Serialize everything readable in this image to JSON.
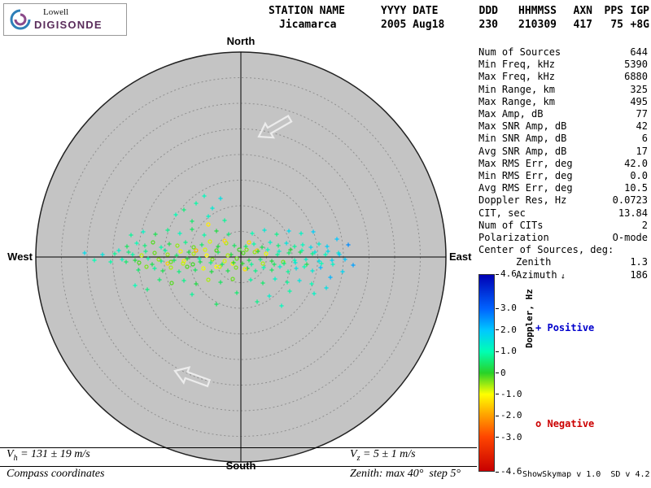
{
  "logo": {
    "top": "Lowell",
    "bottom": "DIGISONDE",
    "accent": "#5a2d5b"
  },
  "header": {
    "columns": [
      {
        "label": "STATION NAME",
        "value": "Jicamarca"
      },
      {
        "label": "YYYY DATE",
        "value": "2005 Aug18"
      },
      {
        "label": "DDD",
        "value": "230"
      },
      {
        "label": "HHMMSS",
        "value": "210309"
      },
      {
        "label": "AXN",
        "value": "417"
      },
      {
        "label": "PPS",
        "value": "75"
      },
      {
        "label": "IGP",
        "value": "+8G"
      }
    ]
  },
  "compass": {
    "north": "North",
    "south": "South",
    "east": "East",
    "west": "West"
  },
  "stats": {
    "rows": [
      {
        "label": "Num of Sources",
        "value": "644"
      },
      {
        "label": "Min Freq, kHz",
        "value": "5390"
      },
      {
        "label": "Max Freq, kHz",
        "value": "6880"
      },
      {
        "label": "Min Range, km",
        "value": "325"
      },
      {
        "label": "Max Range, km",
        "value": "495"
      },
      {
        "label": "Max Amp, dB",
        "value": "77"
      },
      {
        "label": "Max SNR Amp, dB",
        "value": "42"
      },
      {
        "label": "Min SNR Amp, dB",
        "value": "6"
      },
      {
        "label": "Avg SNR Amp, dB",
        "value": "17"
      },
      {
        "label": "Max RMS Err, deg",
        "value": "42.0"
      },
      {
        "label": "Min RMS Err, deg",
        "value": "0.0"
      },
      {
        "label": "Avg RMS Err, deg",
        "value": "10.5"
      },
      {
        "label": "Doppler Res, Hz",
        "value": "0.0723"
      },
      {
        "label": "CIT, sec",
        "value": "13.84"
      },
      {
        "label": "Num of CITs",
        "value": "2"
      },
      {
        "label": "Polarization",
        "value": "O-mode"
      }
    ],
    "center_header": "Center of Sources, deg:",
    "center_rows": [
      {
        "label": "Zenith",
        "value": "1.3"
      },
      {
        "label": "Azimuth",
        "value": "186",
        "icon": "azimuth-direction"
      }
    ]
  },
  "colorbar": {
    "label": "Doppler, Hz",
    "min": -4.6,
    "max": 4.6,
    "ticks": [
      {
        "v": 4.6,
        "label": "4.6"
      },
      {
        "v": 3.0,
        "label": "3.0"
      },
      {
        "v": 2.0,
        "label": "2.0"
      },
      {
        "v": 1.0,
        "label": "1.0"
      },
      {
        "v": 0,
        "label": "0"
      },
      {
        "v": -1.0,
        "label": "-1.0"
      },
      {
        "v": -2.0,
        "label": "-2.0"
      },
      {
        "v": -3.0,
        "label": "-3.0"
      },
      {
        "v": -4.6,
        "label": "-4.6"
      }
    ],
    "stops": [
      {
        "v": 4.6,
        "c": "#0000b4"
      },
      {
        "v": 3.0,
        "c": "#0064ff"
      },
      {
        "v": 2.0,
        "c": "#00c8ff"
      },
      {
        "v": 1.0,
        "c": "#00ffb4"
      },
      {
        "v": 0,
        "c": "#28d228"
      },
      {
        "v": -1.0,
        "c": "#ffff00"
      },
      {
        "v": -2.0,
        "c": "#ffa000"
      },
      {
        "v": -3.0,
        "c": "#ff4600"
      },
      {
        "v": -4.6,
        "c": "#c80000"
      }
    ]
  },
  "legend": {
    "positive": "Positive",
    "positive_marker": "+",
    "positive_color": "#0000cc",
    "negative": "Negative",
    "negative_marker": "o",
    "negative_color": "#cc0000"
  },
  "footer": {
    "vh_sym": "V",
    "vh_sub": "h",
    "vh_rest": " = 131 ± 19 m/s",
    "vz_sym": "V",
    "vz_sub": "z",
    "vz_rest": " = 5 ± 1 m/s",
    "coords": "Compass coordinates",
    "zenith_note": "Zenith: max 40°  step 5°",
    "version": "ShowSkymap v 1.0  SD v 4.2"
  },
  "chart_data": {
    "type": "scatter",
    "title": "Digisonde skymap of echo sources",
    "zenith_max_deg": 40,
    "zenith_step_deg": 5,
    "plot_radius_px": 252,
    "points_units": "pixel offsets from plot center (+x=east, +y=south); value = Doppler, Hz",
    "points": [
      [
        -5,
        2,
        -0.3
      ],
      [
        -12,
        -3,
        0.2
      ],
      [
        -20,
        5,
        -0.8
      ],
      [
        -28,
        -6,
        0.5
      ],
      [
        -35,
        3,
        -0.4
      ],
      [
        -42,
        -2,
        -1.0
      ],
      [
        -50,
        6,
        0.3
      ],
      [
        -58,
        -4,
        -0.6
      ],
      [
        -66,
        2,
        0.1
      ],
      [
        -74,
        -7,
        -0.9
      ],
      [
        -82,
        4,
        0.4
      ],
      [
        -90,
        -3,
        -0.5
      ],
      [
        -98,
        5,
        0.7
      ],
      [
        -106,
        -5,
        -0.3
      ],
      [
        -114,
        2,
        0.9
      ],
      [
        -122,
        -2,
        -0.7
      ],
      [
        -130,
        4,
        0.2
      ],
      [
        -138,
        -6,
        0.6
      ],
      [
        -146,
        3,
        1.1
      ],
      [
        -155,
        -4,
        0.8
      ],
      [
        3,
        -5,
        -0.2
      ],
      [
        10,
        4,
        0.3
      ],
      [
        17,
        -6,
        -0.5
      ],
      [
        24,
        3,
        0.6
      ],
      [
        31,
        -4,
        -0.9
      ],
      [
        38,
        5,
        0.2
      ],
      [
        45,
        -3,
        0.8
      ],
      [
        52,
        6,
        -0.4
      ],
      [
        59,
        -5,
        0.5
      ],
      [
        66,
        4,
        1.0
      ],
      [
        73,
        -6,
        0.3
      ],
      [
        80,
        3,
        1.3
      ],
      [
        88,
        -4,
        0.7
      ],
      [
        96,
        5,
        1.6
      ],
      [
        104,
        -3,
        1.1
      ],
      [
        112,
        4,
        1.8
      ],
      [
        120,
        -5,
        1.4
      ],
      [
        128,
        3,
        2.0
      ],
      [
        -8,
        -14,
        0.4
      ],
      [
        -18,
        -17,
        -0.6
      ],
      [
        -28,
        -13,
        0.2
      ],
      [
        -38,
        -19,
        -0.8
      ],
      [
        -48,
        -15,
        0.5
      ],
      [
        -58,
        -12,
        -0.3
      ],
      [
        -68,
        -18,
        0.7
      ],
      [
        -78,
        -14,
        -0.5
      ],
      [
        -88,
        -16,
        0.3
      ],
      [
        -98,
        -12,
        0.9
      ],
      [
        -108,
        -18,
        -0.2
      ],
      [
        -118,
        -14,
        0.6
      ],
      [
        -128,
        -17,
        1.0
      ],
      [
        -140,
        -13,
        0.4
      ],
      [
        -6,
        13,
        -0.4
      ],
      [
        -16,
        17,
        0.3
      ],
      [
        -26,
        12,
        -0.7
      ],
      [
        -36,
        18,
        0.2
      ],
      [
        -46,
        14,
        -0.9
      ],
      [
        -56,
        16,
        0.4
      ],
      [
        -66,
        12,
        -0.2
      ],
      [
        -76,
        18,
        0.6
      ],
      [
        -86,
        13,
        -0.6
      ],
      [
        -96,
        17,
        0.3
      ],
      [
        -106,
        14,
        0.8
      ],
      [
        -116,
        12,
        -0.4
      ],
      [
        -126,
        16,
        0.5
      ],
      [
        6,
        -13,
        0.5
      ],
      [
        16,
        -16,
        0.9
      ],
      [
        26,
        -12,
        0.3
      ],
      [
        36,
        -18,
        1.2
      ],
      [
        46,
        -14,
        0.6
      ],
      [
        56,
        -17,
        1.5
      ],
      [
        66,
        -13,
        0.8
      ],
      [
        76,
        -15,
        1.1
      ],
      [
        86,
        -12,
        1.7
      ],
      [
        96,
        -16,
        1.3
      ],
      [
        106,
        -13,
        1.9
      ],
      [
        8,
        14,
        0.2
      ],
      [
        18,
        17,
        0.7
      ],
      [
        28,
        13,
        1.0
      ],
      [
        38,
        16,
        0.4
      ],
      [
        48,
        12,
        1.3
      ],
      [
        58,
        18,
        0.8
      ],
      [
        68,
        14,
        1.6
      ],
      [
        78,
        12,
        1.0
      ],
      [
        88,
        17,
        1.4
      ],
      [
        98,
        13,
        2.1
      ],
      [
        -15,
        -28,
        0.6
      ],
      [
        -30,
        -32,
        0.2
      ],
      [
        -45,
        -27,
        0.9
      ],
      [
        -60,
        -34,
        0.4
      ],
      [
        -75,
        -29,
        1.1
      ],
      [
        -90,
        -33,
        0.7
      ],
      [
        -105,
        -28,
        0.3
      ],
      [
        -120,
        -31,
        1.2
      ],
      [
        -135,
        -27,
        0.8
      ],
      [
        -10,
        27,
        -0.3
      ],
      [
        -25,
        31,
        0.4
      ],
      [
        -40,
        28,
        -0.6
      ],
      [
        -55,
        33,
        0.2
      ],
      [
        -70,
        29,
        0.7
      ],
      [
        -85,
        32,
        -0.2
      ],
      [
        -100,
        28,
        0.5
      ],
      [
        12,
        28,
        0.9
      ],
      [
        27,
        32,
        0.5
      ],
      [
        42,
        27,
        1.2
      ],
      [
        57,
        31,
        0.8
      ],
      [
        72,
        29,
        1.5
      ],
      [
        87,
        33,
        1.0
      ],
      [
        14,
        -29,
        1.0
      ],
      [
        29,
        -33,
        1.4
      ],
      [
        44,
        -28,
        0.7
      ],
      [
        59,
        -32,
        1.7
      ],
      [
        74,
        -29,
        1.2
      ],
      [
        89,
        -31,
        1.9
      ],
      [
        -20,
        -45,
        0.8
      ],
      [
        -40,
        -50,
        1.2
      ],
      [
        -60,
        -44,
        0.5
      ],
      [
        -80,
        -52,
        1.0
      ],
      [
        -35,
        -60,
        1.4
      ],
      [
        -55,
        -66,
        0.9
      ],
      [
        -25,
        -72,
        1.6
      ],
      [
        -70,
        -58,
        0.6
      ],
      [
        -45,
        -75,
        1.1
      ],
      [
        -150,
        -8,
        1.3
      ],
      [
        -160,
        6,
        0.9
      ],
      [
        -170,
        -3,
        1.5
      ],
      [
        -180,
        4,
        1.0
      ],
      [
        -192,
        -5,
        1.7
      ],
      [
        110,
        25,
        2.2
      ],
      [
        125,
        18,
        1.8
      ],
      [
        138,
        10,
        2.4
      ],
      [
        118,
        -22,
        2.0
      ],
      [
        132,
        -15,
        2.6
      ],
      [
        105,
        38,
        1.6
      ],
      [
        90,
        45,
        1.2
      ],
      [
        -115,
        40,
        0.6
      ],
      [
        -130,
        35,
        1.0
      ],
      [
        60,
        42,
        0.9
      ],
      [
        35,
        48,
        1.3
      ],
      [
        -5,
        44,
        0.5
      ],
      [
        -60,
        46,
        0.8
      ],
      [
        20,
        55,
        0.7
      ],
      [
        -30,
        58,
        0.4
      ],
      [
        50,
        60,
        1.1
      ],
      [
        -40,
        -40,
        -1.2
      ],
      [
        -20,
        -20,
        -1.4
      ],
      [
        -10,
        8,
        -1.1
      ],
      [
        5,
        15,
        -1.3
      ],
      [
        20,
        -8,
        -1.6
      ],
      [
        -70,
        5,
        -1.2
      ],
      [
        -90,
        8,
        -1.5
      ],
      [
        -55,
        -8,
        -1.8
      ],
      [
        -30,
        12,
        -1.0
      ],
      [
        10,
        -18,
        -1.4
      ],
      [
        -2,
        -9,
        -0.1
      ],
      [
        -9,
        7,
        0.1
      ],
      [
        -16,
        -2,
        -0.6
      ],
      [
        -23,
        9,
        0.4
      ],
      [
        -30,
        -8,
        -0.2
      ],
      [
        -37,
        7,
        0.6
      ],
      [
        -44,
        -9,
        -0.8
      ],
      [
        -51,
        2,
        0.9
      ],
      [
        -59,
        9,
        -0.1
      ],
      [
        -64,
        -6,
        0.2
      ],
      [
        -71,
        8,
        -0.7
      ],
      [
        -79,
        -2,
        0.5
      ],
      [
        -86,
        6,
        -0.3
      ],
      [
        -93,
        -8,
        0.8
      ],
      [
        -101,
        3,
        -0.5
      ],
      [
        -109,
        9,
        0.3
      ],
      [
        -117,
        -7,
        0.7
      ],
      [
        -125,
        7,
        -0.2
      ],
      [
        -133,
        -3,
        0.9
      ],
      [
        -141,
        6,
        0.5
      ],
      [
        2,
        8,
        0.0
      ],
      [
        7,
        -9,
        -0.4
      ],
      [
        13,
        9,
        0.8
      ],
      [
        21,
        -7,
        0.2
      ],
      [
        27,
        8,
        -0.6
      ],
      [
        33,
        -9,
        1.0
      ],
      [
        41,
        9,
        0.4
      ],
      [
        47,
        -7,
        1.2
      ],
      [
        53,
        8,
        0.6
      ],
      [
        61,
        -9,
        0.1
      ],
      [
        67,
        7,
        1.4
      ],
      [
        75,
        -8,
        0.9
      ],
      [
        81,
        9,
        0.3
      ],
      [
        91,
        -6,
        1.5
      ],
      [
        99,
        8,
        1.0
      ],
      [
        107,
        -7,
        1.7
      ],
      [
        113,
        9,
        1.2
      ],
      [
        121,
        -3,
        1.9
      ]
    ]
  }
}
